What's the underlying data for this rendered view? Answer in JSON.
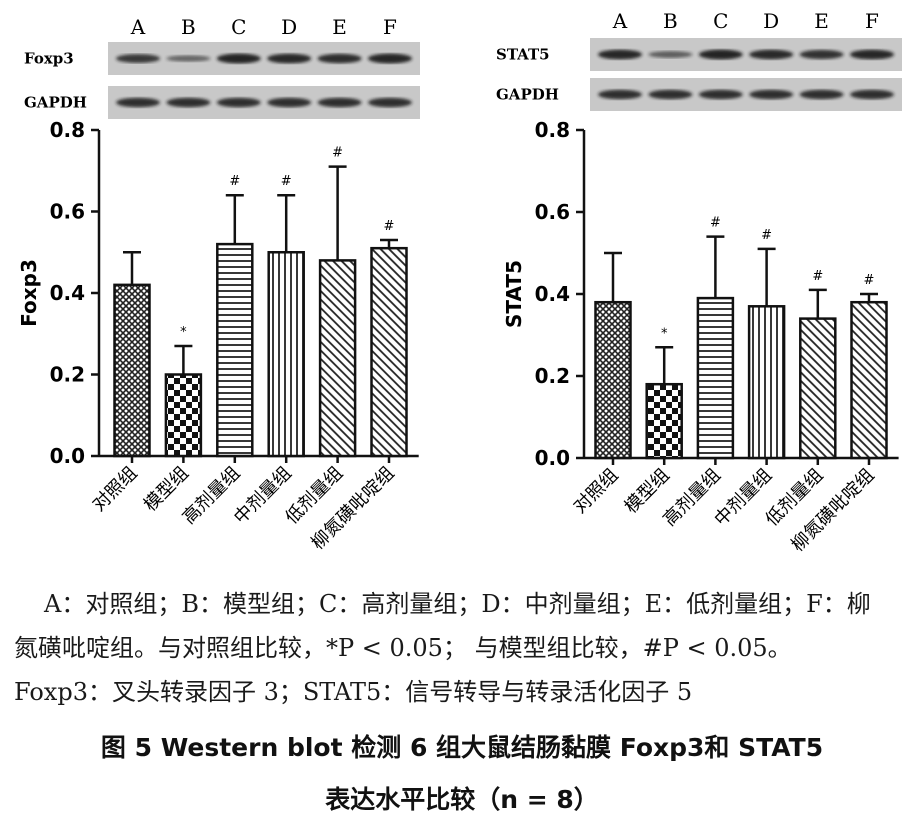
{
  "chart_data": [
    {
      "type": "bar",
      "ylabel": "Foxp3",
      "ylim": [
        0,
        0.8
      ],
      "yticks": [
        "0.0",
        "0.2",
        "0.4",
        "0.6",
        "0.8"
      ],
      "categories": [
        "对照组",
        "模型组",
        "高剂量组",
        "中剂量组",
        "低剂量组",
        "柳氮磺吡啶组"
      ],
      "values": [
        0.42,
        0.2,
        0.52,
        0.5,
        0.48,
        0.51
      ],
      "errors": [
        0.08,
        0.07,
        0.12,
        0.14,
        0.23,
        0.02
      ],
      "significance": [
        "",
        "*",
        "#",
        "#",
        "#",
        "#"
      ],
      "patterns": [
        "crosshatch",
        "checker",
        "horizontal",
        "vertical",
        "diagonal",
        "diagonal"
      ],
      "blot": {
        "lanes": [
          "A",
          "B",
          "C",
          "D",
          "E",
          "F"
        ],
        "target_label": "Foxp3",
        "control_label": "GAPDH"
      }
    },
    {
      "type": "bar",
      "ylabel": "STAT5",
      "ylim": [
        0,
        0.8
      ],
      "yticks": [
        "0.0",
        "0.2",
        "0.4",
        "0.6",
        "0.8"
      ],
      "categories": [
        "对照组",
        "模型组",
        "高剂量组",
        "中剂量组",
        "低剂量组",
        "柳氮磺吡啶组"
      ],
      "values": [
        0.38,
        0.18,
        0.39,
        0.37,
        0.34,
        0.38
      ],
      "errors": [
        0.12,
        0.09,
        0.15,
        0.14,
        0.07,
        0.02
      ],
      "significance": [
        "",
        "*",
        "#",
        "#",
        "#",
        "#"
      ],
      "patterns": [
        "crosshatch",
        "checker",
        "horizontal",
        "vertical",
        "diagonal",
        "diagonal"
      ],
      "blot": {
        "lanes": [
          "A",
          "B",
          "C",
          "D",
          "E",
          "F"
        ],
        "target_label": "STAT5",
        "control_label": "GAPDH"
      }
    }
  ],
  "caption": {
    "line1": "A：对照组；B：模型组；C：高剂量组；D：中剂量组；E：低剂量组；F：柳",
    "line2": "氮磺吡啶组。与对照组比较，*P < 0.05； 与模型组比较，#P < 0.05。",
    "line3": "Foxp3：叉头转录因子 3；STAT5：信号转导与转录活化因子 5",
    "title_line1": "图 5 Western blot 检测 6 组大鼠结肠黏膜 Foxp3和 STAT5",
    "title_line2": "表达水平比较（n = 8）"
  }
}
